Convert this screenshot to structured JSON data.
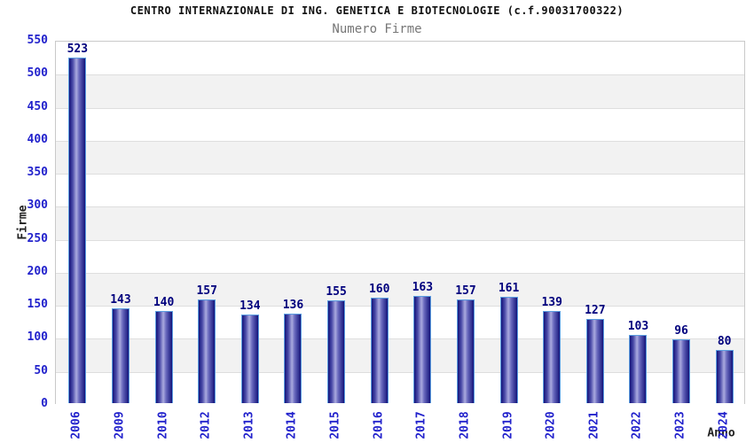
{
  "header": {
    "title": "CENTRO INTERNAZIONALE DI ING. GENETICA E BIOTECNOLOGIE (c.f.90031700322)",
    "subtitle": "Numero Firme"
  },
  "chart_data": {
    "type": "bar",
    "title": "CENTRO INTERNAZIONALE DI ING. GENETICA E BIOTECNOLOGIE (c.f.90031700322)",
    "subtitle": "Numero Firme",
    "categories": [
      "2006",
      "2009",
      "2010",
      "2012",
      "2013",
      "2014",
      "2015",
      "2016",
      "2017",
      "2018",
      "2019",
      "2020",
      "2021",
      "2022",
      "2023",
      "2024"
    ],
    "values": [
      523,
      143,
      140,
      157,
      134,
      136,
      155,
      160,
      163,
      157,
      161,
      139,
      127,
      103,
      96,
      80
    ],
    "xlabel": "Anno",
    "ylabel": "Firme",
    "ylim": [
      0,
      550
    ],
    "ytick_step": 50,
    "yticks": [
      0,
      50,
      100,
      150,
      200,
      250,
      300,
      350,
      400,
      450,
      500,
      550
    ],
    "grid": "horizontal gridlines with alternating row bands",
    "legend_position": "none",
    "value_labels": "above bars"
  },
  "colors": {
    "bar_dark": "#14147a",
    "bar_mid": "#4a4aa8",
    "bar_light": "#aaaadf",
    "bar_mid2": "#6a6abe",
    "bar_border": "#5b9de0",
    "tick_label": "#2222cc",
    "value_label": "#00007d",
    "band_gray": "#f2f2f2",
    "band_white": "#ffffff",
    "gridline": "#dedede",
    "plot_border": "#c9c9c9",
    "title_color": "#111111",
    "subtitle_color": "#767676",
    "axis_label_color": "#222222"
  }
}
